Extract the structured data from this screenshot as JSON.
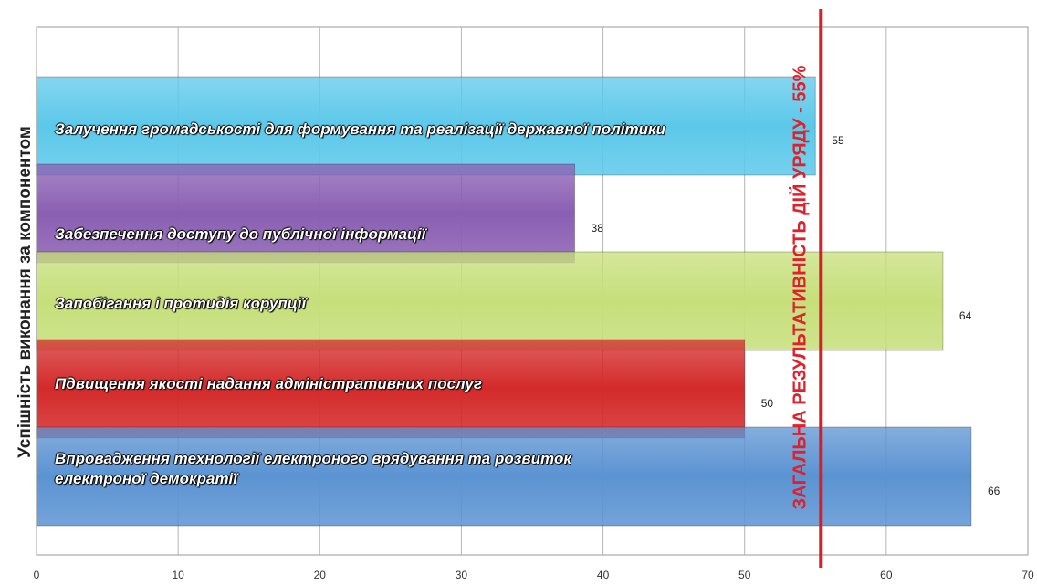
{
  "chart_data": {
    "type": "bar",
    "orientation": "horizontal",
    "ylabel": "Успішність виконання за компонентом",
    "xlim": [
      0,
      70
    ],
    "x_ticks": [
      "0",
      "10",
      "20",
      "30",
      "40",
      "50",
      "60",
      "70"
    ],
    "grid": true,
    "categories": [
      "Залучення громадськості для формування та реалізації державної політики",
      "Забезпечення доступу до публічної інформації",
      "Запобігання і протидія корупції",
      "Пдвищення якості надання адміністративних послуг",
      "Впровадження технології електроного врядування та розвиток електроної демократії"
    ],
    "values": [
      55,
      38,
      64,
      50,
      66
    ],
    "value_labels": [
      "55",
      "38",
      "64",
      "50",
      "66"
    ],
    "colors": [
      "#5cc8ea",
      "#8a5fb3",
      "#c6df7a",
      "#d42a2a",
      "#5b93d2"
    ],
    "reference_line": {
      "value": 55,
      "label": "ЗАГАЛЬНА РЕЗУЛЬТАТИВНІСТЬ ДІЙ УРЯДУ - 55%",
      "color": "#d4202a"
    }
  }
}
